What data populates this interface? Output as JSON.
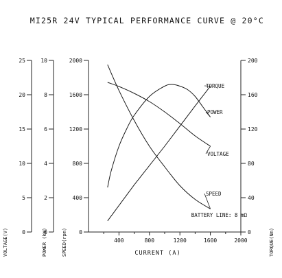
{
  "chart_data": {
    "type": "line",
    "title": "MI25R 24V TYPICAL PERFORMANCE CURVE @ 20°C",
    "xlabel": "CURRENT (A)",
    "x_ticks": [
      400,
      800,
      1200,
      1600,
      2000
    ],
    "xlim": [
      0,
      2000
    ],
    "annotation": "BATTERY LINE: 8 mΩ",
    "axes": {
      "voltage": {
        "label": "VOLTAGE(V)",
        "ticks": [
          0,
          5,
          10,
          15,
          20,
          25
        ],
        "range": [
          0,
          25
        ]
      },
      "power": {
        "label": "POWER (kW)",
        "ticks": [
          0,
          2,
          4,
          6,
          8,
          10
        ],
        "range": [
          0,
          10
        ]
      },
      "speed": {
        "label": "SPEED(rpm)",
        "ticks": [
          0,
          400,
          800,
          1200,
          1600,
          2000
        ],
        "range": [
          0,
          2000
        ]
      },
      "torque": {
        "label": "TORQUE(Nm)",
        "ticks": [
          0,
          40,
          80,
          120,
          160,
          200
        ],
        "range": [
          0,
          200
        ]
      }
    },
    "series": [
      {
        "name": "TORQUE",
        "axis": "torque",
        "x": [
          250,
          600,
          1000,
          1400,
          1600
        ],
        "y": [
          13,
          55,
          100,
          147,
          170
        ]
      },
      {
        "name": "POWER",
        "axis": "power",
        "x": [
          250,
          300,
          400,
          500,
          600,
          800,
          1000,
          1100,
          1200,
          1300,
          1400,
          1500,
          1600
        ],
        "y": [
          2.6,
          3.6,
          5.0,
          6.0,
          6.8,
          7.9,
          8.5,
          8.6,
          8.5,
          8.3,
          7.9,
          7.3,
          6.7
        ]
      },
      {
        "name": "VOLTAGE",
        "axis": "voltage",
        "x": [
          250,
          400,
          600,
          800,
          1000,
          1200,
          1400,
          1600
        ],
        "y": [
          21.8,
          21.2,
          20.2,
          19.0,
          17.5,
          15.8,
          14.0,
          12.5
        ]
      },
      {
        "name": "SPEED",
        "axis": "speed",
        "x": [
          250,
          400,
          600,
          800,
          1000,
          1200,
          1400,
          1600
        ],
        "y": [
          1950,
          1650,
          1300,
          1000,
          760,
          540,
          380,
          270
        ]
      }
    ]
  }
}
